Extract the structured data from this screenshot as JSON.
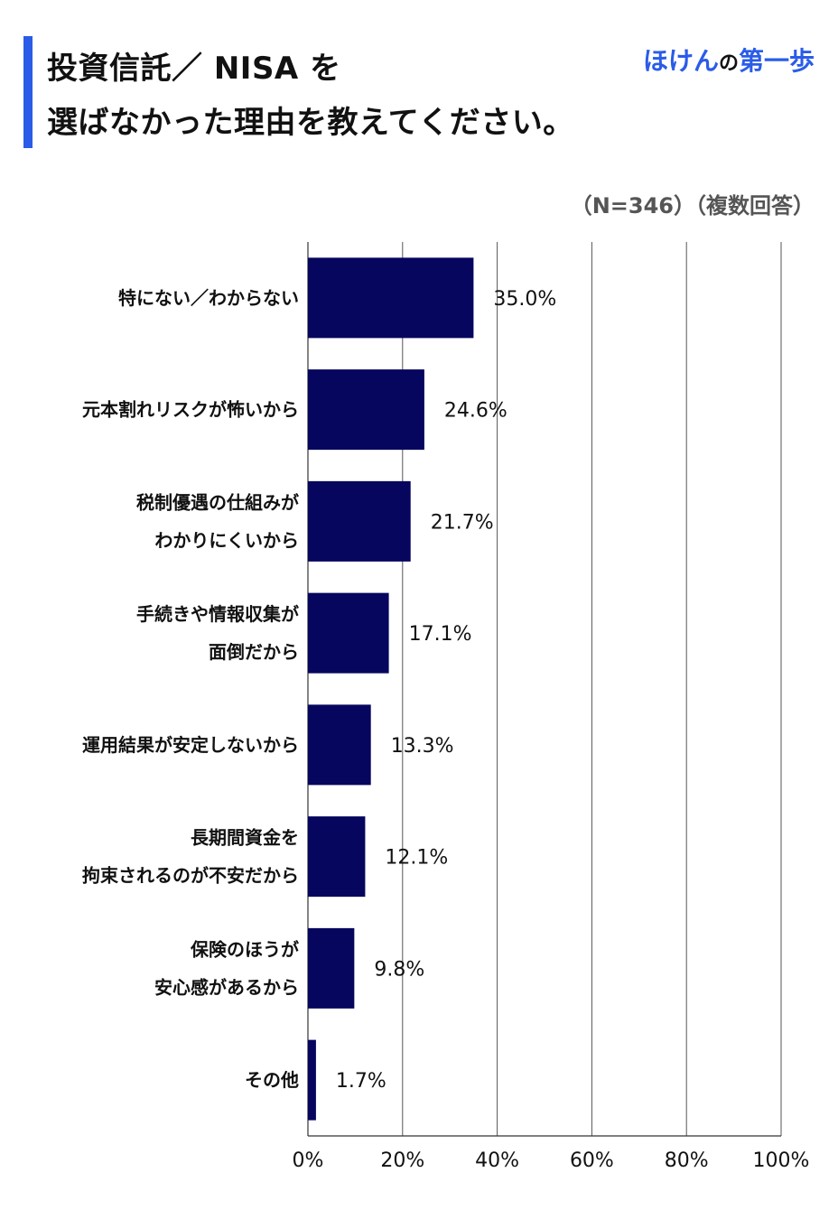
{
  "header": {
    "title_line_1": "投資信託／ NISA を",
    "title_line_2": "選ばなかった理由を教えてください。",
    "brand_part_1": "ほけん",
    "brand_part_2": "の",
    "brand_part_3": "第一歩",
    "sample_note": "（N=346）（複数回答）"
  },
  "colors": {
    "bar": "#06065e",
    "accent": "#2a5ce8",
    "gridline": "#555555"
  },
  "chart_data": {
    "type": "bar",
    "orientation": "horizontal",
    "categories": [
      [
        "特にない／わからない"
      ],
      [
        "元本割れリスクが怖いから"
      ],
      [
        "税制優遇の仕組みが",
        "わかりにくいから"
      ],
      [
        "手続きや情報収集が",
        "面倒だから"
      ],
      [
        "運用結果が安定しないから"
      ],
      [
        "長期間資金を",
        "拘束されるのが不安だから"
      ],
      [
        "保険のほうが",
        "安心感があるから"
      ],
      [
        "その他"
      ]
    ],
    "values": [
      35.0,
      24.6,
      21.7,
      17.1,
      13.3,
      12.1,
      9.8,
      1.7
    ],
    "value_labels": [
      "35.0%",
      "24.6%",
      "21.7%",
      "17.1%",
      "13.3%",
      "12.1%",
      "9.8%",
      "1.7%"
    ],
    "xlim": [
      0,
      100
    ],
    "x_ticks": [
      0,
      20,
      40,
      60,
      80,
      100
    ],
    "x_tick_labels": [
      "0%",
      "20%",
      "40%",
      "60%",
      "80%",
      "100%"
    ],
    "grid": true,
    "legend": "none"
  }
}
